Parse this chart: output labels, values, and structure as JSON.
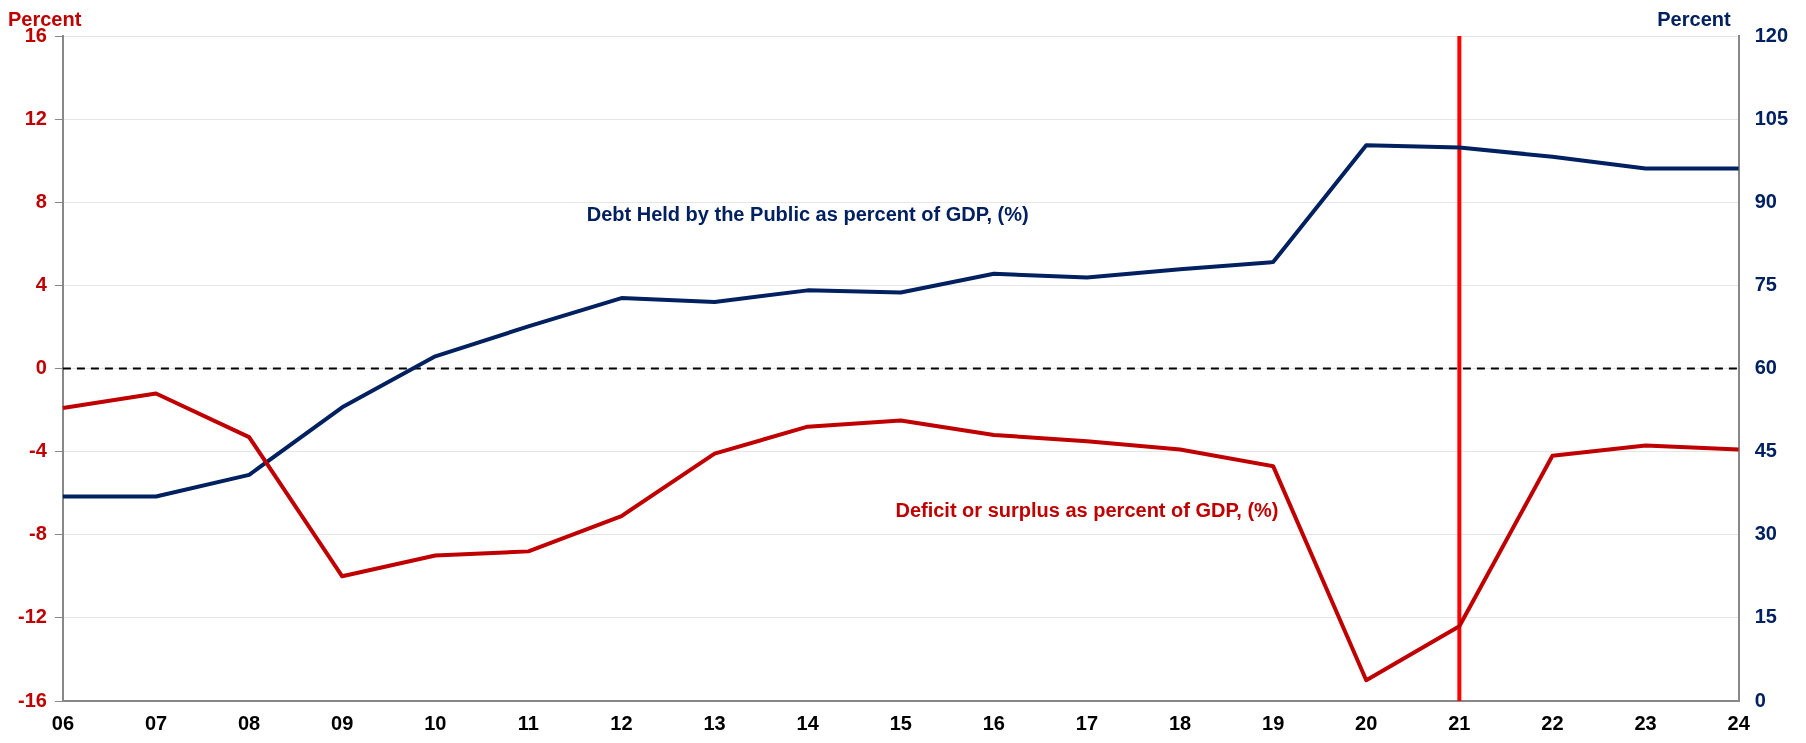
{
  "chart_data": {
    "type": "line",
    "ylabel": "Percent",
    "y2label": "Percent",
    "categories": [
      "06",
      "07",
      "08",
      "09",
      "10",
      "11",
      "12",
      "13",
      "14",
      "15",
      "16",
      "17",
      "18",
      "19",
      "20",
      "21",
      "22",
      "23",
      "24"
    ],
    "series": [
      {
        "name": "Deficit or surplus as percent of GDP, (%)",
        "color": "#c00000",
        "values": [
          -1.9,
          -1.2,
          -3.3,
          -10.0,
          -9.0,
          -8.8,
          -7.1,
          -4.1,
          -2.8,
          -2.5,
          -3.2,
          -3.5,
          -3.9,
          -4.7,
          -15.0,
          -12.4,
          -4.2,
          -3.7,
          -3.9
        ]
      },
      {
        "name": "Debt Held by the Public as percent of GDP, (%)",
        "color": "#002060",
        "axis": "y2",
        "values": [
          36.9,
          36.9,
          40.8,
          53.0,
          62.2,
          67.6,
          72.7,
          72.0,
          74.1,
          73.7,
          77.1,
          76.4,
          77.9,
          79.2,
          100.3,
          99.9,
          98.2,
          96.1,
          96.1
        ]
      }
    ],
    "ylim": [
      -16,
      16
    ],
    "yticks": [
      -16,
      -12,
      -8,
      -4,
      0,
      4,
      8,
      12,
      16
    ],
    "y2lim": [
      0,
      120
    ],
    "y2ticks": [
      0,
      15,
      30,
      45,
      60,
      75,
      90,
      105,
      120
    ],
    "ref_lines": [
      {
        "axis": "y",
        "value": 0,
        "color": "#000000",
        "line_style": "dashed"
      },
      {
        "axis": "x",
        "value": "21",
        "color": "#ff0000",
        "line_style": "solid"
      }
    ],
    "grid": "y",
    "legend": false,
    "marker": "none",
    "line_style": "solid"
  }
}
